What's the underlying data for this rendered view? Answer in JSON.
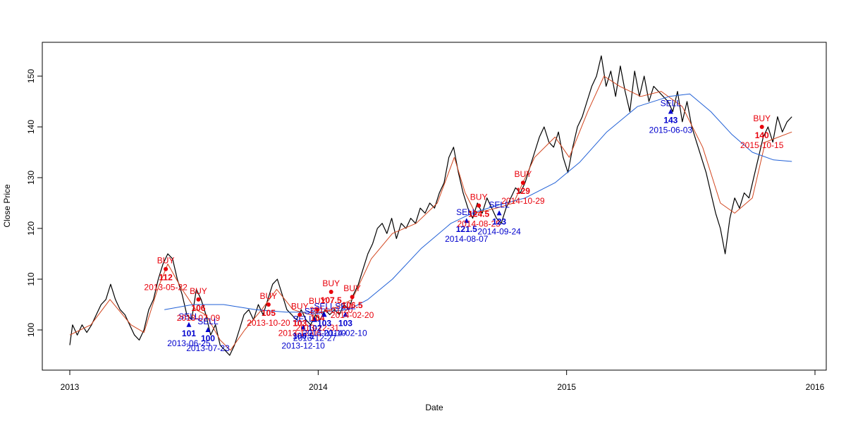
{
  "chart_data": {
    "type": "line",
    "title": "",
    "xlabel": "Date",
    "ylabel": "Close Price",
    "xlim": [
      "2013-01-01",
      "2016-01-01"
    ],
    "ylim": [
      95,
      155
    ],
    "x_ticks": [
      "2013",
      "2014",
      "2015",
      "2016"
    ],
    "y_ticks": [
      100,
      110,
      120,
      130,
      140,
      150
    ],
    "grid": false,
    "legend": "none",
    "colors": {
      "price": "#000000",
      "fast_ma": "#d2451e",
      "slow_ma": "#1f5fd6",
      "buy": "#e8000b",
      "sell": "#0000cd"
    },
    "series": [
      {
        "key": "price",
        "points": [
          [
            "2013-01-01",
            97
          ],
          [
            "2013-01-05",
            101
          ],
          [
            "2013-01-12",
            99
          ],
          [
            "2013-01-19",
            101
          ],
          [
            "2013-01-26",
            99.5
          ],
          [
            "2013-02-02",
            101
          ],
          [
            "2013-02-09",
            103
          ],
          [
            "2013-02-16",
            105
          ],
          [
            "2013-02-23",
            106
          ],
          [
            "2013-03-02",
            109
          ],
          [
            "2013-03-09",
            106
          ],
          [
            "2013-03-16",
            104
          ],
          [
            "2013-03-23",
            103
          ],
          [
            "2013-03-30",
            101
          ],
          [
            "2013-04-06",
            99
          ],
          [
            "2013-04-13",
            98
          ],
          [
            "2013-04-20",
            100
          ],
          [
            "2013-04-27",
            104
          ],
          [
            "2013-05-04",
            106
          ],
          [
            "2013-05-11",
            110
          ],
          [
            "2013-05-18",
            113
          ],
          [
            "2013-05-25",
            115
          ],
          [
            "2013-06-01",
            114
          ],
          [
            "2013-06-08",
            110
          ],
          [
            "2013-06-15",
            107
          ],
          [
            "2013-06-22",
            103
          ],
          [
            "2013-06-29",
            102
          ],
          [
            "2013-07-06",
            108
          ],
          [
            "2013-07-13",
            106
          ],
          [
            "2013-07-20",
            103
          ],
          [
            "2013-07-27",
            99
          ],
          [
            "2013-08-03",
            101
          ],
          [
            "2013-08-10",
            97
          ],
          [
            "2013-08-17",
            96
          ],
          [
            "2013-08-24",
            95
          ],
          [
            "2013-08-31",
            97
          ],
          [
            "2013-09-07",
            100
          ],
          [
            "2013-09-14",
            103
          ],
          [
            "2013-09-21",
            104
          ],
          [
            "2013-09-28",
            102
          ],
          [
            "2013-10-05",
            105
          ],
          [
            "2013-10-12",
            103
          ],
          [
            "2013-10-19",
            106
          ],
          [
            "2013-10-26",
            109
          ],
          [
            "2013-11-02",
            110
          ],
          [
            "2013-11-09",
            107
          ],
          [
            "2013-11-16",
            104
          ],
          [
            "2013-11-23",
            103
          ],
          [
            "2013-11-30",
            102
          ],
          [
            "2013-12-07",
            104
          ],
          [
            "2013-12-14",
            102
          ],
          [
            "2013-12-21",
            101
          ],
          [
            "2013-12-28",
            103
          ],
          [
            "2014-01-04",
            102
          ],
          [
            "2014-01-11",
            104
          ],
          [
            "2014-01-18",
            103
          ],
          [
            "2014-01-25",
            104
          ],
          [
            "2014-02-01",
            103
          ],
          [
            "2014-02-08",
            105
          ],
          [
            "2014-02-15",
            104
          ],
          [
            "2014-02-22",
            107
          ],
          [
            "2014-03-01",
            109
          ],
          [
            "2014-03-08",
            112
          ],
          [
            "2014-03-15",
            115
          ],
          [
            "2014-03-22",
            117
          ],
          [
            "2014-03-29",
            120
          ],
          [
            "2014-04-05",
            121
          ],
          [
            "2014-04-12",
            119
          ],
          [
            "2014-04-19",
            122
          ],
          [
            "2014-04-26",
            118
          ],
          [
            "2014-05-03",
            121
          ],
          [
            "2014-05-10",
            120
          ],
          [
            "2014-05-17",
            122
          ],
          [
            "2014-05-24",
            121
          ],
          [
            "2014-05-31",
            124
          ],
          [
            "2014-06-07",
            123
          ],
          [
            "2014-06-14",
            125
          ],
          [
            "2014-06-21",
            124
          ],
          [
            "2014-06-28",
            127
          ],
          [
            "2014-07-05",
            129
          ],
          [
            "2014-07-12",
            134
          ],
          [
            "2014-07-19",
            136
          ],
          [
            "2014-07-26",
            131
          ],
          [
            "2014-08-02",
            127
          ],
          [
            "2014-08-09",
            124
          ],
          [
            "2014-08-16",
            122
          ],
          [
            "2014-08-23",
            125
          ],
          [
            "2014-08-30",
            123
          ],
          [
            "2014-09-06",
            126
          ],
          [
            "2014-09-13",
            124
          ],
          [
            "2014-09-20",
            122
          ],
          [
            "2014-09-27",
            121
          ],
          [
            "2014-10-04",
            124
          ],
          [
            "2014-10-11",
            126
          ],
          [
            "2014-10-18",
            128
          ],
          [
            "2014-10-25",
            127
          ],
          [
            "2014-11-01",
            129
          ],
          [
            "2014-11-08",
            132
          ],
          [
            "2014-11-15",
            135
          ],
          [
            "2014-11-22",
            138
          ],
          [
            "2014-11-29",
            140
          ],
          [
            "2014-12-06",
            137
          ],
          [
            "2014-12-13",
            136
          ],
          [
            "2014-12-20",
            139
          ],
          [
            "2014-12-27",
            134
          ],
          [
            "2015-01-03",
            131
          ],
          [
            "2015-01-10",
            136
          ],
          [
            "2015-01-17",
            140
          ],
          [
            "2015-01-24",
            142
          ],
          [
            "2015-01-31",
            145
          ],
          [
            "2015-02-07",
            148
          ],
          [
            "2015-02-14",
            150
          ],
          [
            "2015-02-21",
            154
          ],
          [
            "2015-02-28",
            148
          ],
          [
            "2015-03-07",
            151
          ],
          [
            "2015-03-14",
            146
          ],
          [
            "2015-03-21",
            152
          ],
          [
            "2015-03-28",
            147
          ],
          [
            "2015-04-04",
            143
          ],
          [
            "2015-04-11",
            151
          ],
          [
            "2015-04-18",
            146
          ],
          [
            "2015-04-25",
            150
          ],
          [
            "2015-05-02",
            145
          ],
          [
            "2015-05-09",
            148
          ],
          [
            "2015-05-16",
            147
          ],
          [
            "2015-05-23",
            146
          ],
          [
            "2015-05-30",
            145
          ],
          [
            "2015-06-06",
            143
          ],
          [
            "2015-06-13",
            147
          ],
          [
            "2015-06-20",
            141
          ],
          [
            "2015-06-27",
            145
          ],
          [
            "2015-07-04",
            140
          ],
          [
            "2015-07-11",
            137
          ],
          [
            "2015-07-18",
            134
          ],
          [
            "2015-07-25",
            131
          ],
          [
            "2015-08-01",
            127
          ],
          [
            "2015-08-08",
            123
          ],
          [
            "2015-08-15",
            120
          ],
          [
            "2015-08-22",
            115
          ],
          [
            "2015-08-29",
            122
          ],
          [
            "2015-09-05",
            126
          ],
          [
            "2015-09-12",
            124
          ],
          [
            "2015-09-19",
            127
          ],
          [
            "2015-09-26",
            126
          ],
          [
            "2015-10-03",
            130
          ],
          [
            "2015-10-10",
            134
          ],
          [
            "2015-10-17",
            138
          ],
          [
            "2015-10-24",
            140
          ],
          [
            "2015-10-31",
            137
          ],
          [
            "2015-11-07",
            142
          ],
          [
            "2015-11-14",
            139
          ],
          [
            "2015-11-21",
            141
          ],
          [
            "2015-11-28",
            142
          ]
        ]
      },
      {
        "key": "fast_ma",
        "points": [
          [
            "2013-01-01",
            99
          ],
          [
            "2013-02-01",
            101
          ],
          [
            "2013-03-01",
            106
          ],
          [
            "2013-04-01",
            101
          ],
          [
            "2013-04-20",
            99.5
          ],
          [
            "2013-05-10",
            108
          ],
          [
            "2013-05-25",
            113
          ],
          [
            "2013-06-15",
            108
          ],
          [
            "2013-07-05",
            104
          ],
          [
            "2013-07-20",
            103
          ],
          [
            "2013-08-10",
            98
          ],
          [
            "2013-08-25",
            96
          ],
          [
            "2013-09-15",
            100
          ],
          [
            "2013-10-10",
            104
          ],
          [
            "2013-11-01",
            108
          ],
          [
            "2013-11-25",
            104
          ],
          [
            "2013-12-20",
            103
          ],
          [
            "2014-01-20",
            104
          ],
          [
            "2014-02-20",
            106
          ],
          [
            "2014-03-20",
            114
          ],
          [
            "2014-04-20",
            119
          ],
          [
            "2014-05-25",
            121
          ],
          [
            "2014-06-25",
            125
          ],
          [
            "2014-07-20",
            134
          ],
          [
            "2014-08-05",
            127
          ],
          [
            "2014-08-20",
            123
          ],
          [
            "2014-09-20",
            124
          ],
          [
            "2014-10-15",
            125
          ],
          [
            "2014-11-15",
            134
          ],
          [
            "2014-12-15",
            138
          ],
          [
            "2015-01-05",
            134
          ],
          [
            "2015-02-01",
            143
          ],
          [
            "2015-02-25",
            150
          ],
          [
            "2015-03-20",
            148
          ],
          [
            "2015-04-20",
            146
          ],
          [
            "2015-05-20",
            147
          ],
          [
            "2015-06-20",
            144
          ],
          [
            "2015-07-20",
            136
          ],
          [
            "2015-08-15",
            125
          ],
          [
            "2015-09-05",
            123
          ],
          [
            "2015-10-01",
            126
          ],
          [
            "2015-10-20",
            137
          ],
          [
            "2015-11-28",
            139
          ]
        ]
      },
      {
        "key": "slow_ma",
        "points": [
          [
            "2013-05-20",
            104
          ],
          [
            "2013-07-01",
            105
          ],
          [
            "2013-08-15",
            105
          ],
          [
            "2013-10-01",
            104
          ],
          [
            "2013-11-15",
            103.5
          ],
          [
            "2014-01-01",
            103.5
          ],
          [
            "2014-02-15",
            104
          ],
          [
            "2014-03-15",
            106
          ],
          [
            "2014-04-20",
            110
          ],
          [
            "2014-06-01",
            116
          ],
          [
            "2014-07-15",
            121
          ],
          [
            "2014-08-15",
            123
          ],
          [
            "2014-09-20",
            124.5
          ],
          [
            "2014-11-01",
            126
          ],
          [
            "2014-12-15",
            129
          ],
          [
            "2015-01-20",
            133
          ],
          [
            "2015-03-01",
            139
          ],
          [
            "2015-04-15",
            144
          ],
          [
            "2015-06-01",
            146
          ],
          [
            "2015-07-01",
            146.5
          ],
          [
            "2015-08-01",
            143
          ],
          [
            "2015-09-01",
            138.5
          ],
          [
            "2015-10-01",
            135
          ],
          [
            "2015-11-01",
            133.5
          ],
          [
            "2015-11-28",
            133.2
          ]
        ]
      }
    ],
    "signals": [
      {
        "type": "BUY",
        "label": "BUY",
        "date": "2013-05-22",
        "price": 112,
        "price_label": "112",
        "date_label": "2013-05-22"
      },
      {
        "type": "SELL",
        "label": "SELL",
        "date": "2013-06-25",
        "price": 101,
        "price_label": "101",
        "date_label": "2013-06-25"
      },
      {
        "type": "BUY",
        "label": "BUY",
        "date": "2013-07-09",
        "price": 106,
        "price_label": "106",
        "date_label": "2013-07-09"
      },
      {
        "type": "SELL",
        "label": "SELL",
        "date": "2013-07-23",
        "price": 100,
        "price_label": "100",
        "date_label": "2013-07-23"
      },
      {
        "type": "BUY",
        "label": "BUY",
        "date": "2013-10-20",
        "price": 105,
        "price_label": "105",
        "date_label": "2013-10-20"
      },
      {
        "type": "SELL",
        "label": "SELL",
        "date": "2013-12-10",
        "price": 100.5,
        "price_label": "100.5",
        "date_label": "2013-12-10"
      },
      {
        "type": "BUY",
        "label": "BUY",
        "date": "2013-12-05",
        "price": 103,
        "price_label": "103",
        "date_label": "2013-12-05"
      },
      {
        "type": "SELL",
        "label": "SELL",
        "date": "2013-12-27",
        "price": 102,
        "price_label": "102",
        "date_label": "2013-12-27"
      },
      {
        "type": "BUY",
        "label": "BUY",
        "date": "2013-12-31",
        "price": 104,
        "price_label": "104",
        "date_label": "2013-12-31"
      },
      {
        "type": "SELL",
        "label": "SELL",
        "date": "2014-01-10",
        "price": 103,
        "price_label": "103",
        "date_label": "2014-01-10"
      },
      {
        "type": "BUY",
        "label": "BUY",
        "date": "2014-01-20",
        "price": 107.5,
        "price_label": "107.5",
        "date_label": "2014-01-20"
      },
      {
        "type": "SELL",
        "label": "SELL",
        "date": "2014-02-10",
        "price": 103,
        "price_label": "103",
        "date_label": "2014-02-10"
      },
      {
        "type": "BUY",
        "label": "BUY",
        "date": "2014-02-20",
        "price": 106.5,
        "price_label": "106.5",
        "date_label": "2014-02-20"
      },
      {
        "type": "SELL",
        "label": "SELL",
        "date": "2014-08-07",
        "price": 121.5,
        "price_label": "121.5",
        "date_label": "2014-08-07"
      },
      {
        "type": "BUY",
        "label": "BUY",
        "date": "2014-08-25",
        "price": 124.5,
        "price_label": "124.5",
        "date_label": "2014-08-25"
      },
      {
        "type": "SELL",
        "label": "SELL",
        "date": "2014-09-24",
        "price": 123,
        "price_label": "123",
        "date_label": "2014-09-24"
      },
      {
        "type": "BUY",
        "label": "BUY",
        "date": "2014-10-29",
        "price": 129,
        "price_label": "129",
        "date_label": "2014-10-29"
      },
      {
        "type": "SELL",
        "label": "SELL",
        "date": "2015-06-03",
        "price": 143,
        "price_label": "143",
        "date_label": "2015-06-03"
      },
      {
        "type": "BUY",
        "label": "BUY",
        "date": "2015-10-15",
        "price": 140,
        "price_label": "140",
        "date_label": "2015-10-15"
      }
    ]
  }
}
